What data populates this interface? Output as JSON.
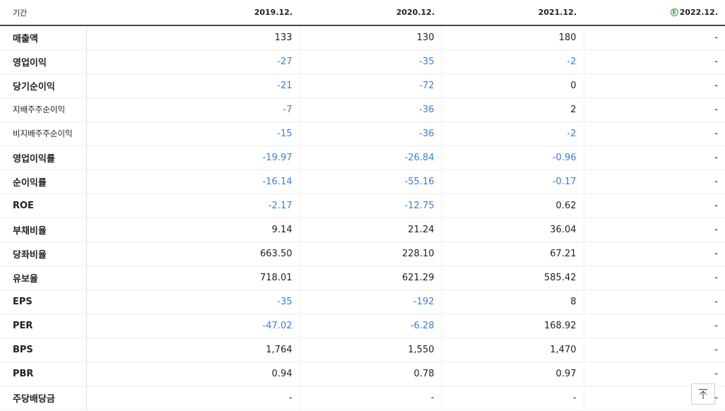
{
  "header": {
    "period_label": "기간",
    "years": [
      "2019.12.",
      "2020.12.",
      "2021.12.",
      "2022.12."
    ],
    "estimate_mark": "E"
  },
  "rows": [
    {
      "label": "매출액",
      "values": [
        "133",
        "130",
        "180",
        "-"
      ]
    },
    {
      "label": "영업이익",
      "values": [
        "-27",
        "-35",
        "-2",
        "-"
      ]
    },
    {
      "label": "당기순이익",
      "values": [
        "-21",
        "-72",
        "0",
        "-"
      ]
    },
    {
      "label": "지배주주순이익",
      "values": [
        "-7",
        "-36",
        "2",
        "-"
      ]
    },
    {
      "label": "비지배주주순이익",
      "values": [
        "-15",
        "-36",
        "-2",
        "-"
      ]
    },
    {
      "label": "영업이익률",
      "values": [
        "-19.97",
        "-26.84",
        "-0.96",
        "-"
      ]
    },
    {
      "label": "순이익률",
      "values": [
        "-16.14",
        "-55.16",
        "-0.17",
        "-"
      ]
    },
    {
      "label": "ROE",
      "values": [
        "-2.17",
        "-12.75",
        "0.62",
        "-"
      ]
    },
    {
      "label": "부채비율",
      "values": [
        "9.14",
        "21.24",
        "36.04",
        "-"
      ]
    },
    {
      "label": "당좌비율",
      "values": [
        "663.50",
        "228.10",
        "67.21",
        "-"
      ]
    },
    {
      "label": "유보율",
      "values": [
        "718.01",
        "621.29",
        "585.42",
        "-"
      ]
    },
    {
      "label": "EPS",
      "values": [
        "-35",
        "-192",
        "8",
        "-"
      ]
    },
    {
      "label": "PER",
      "values": [
        "-47.02",
        "-6.28",
        "168.92",
        "-"
      ]
    },
    {
      "label": "BPS",
      "values": [
        "1,764",
        "1,550",
        "1,470",
        "-"
      ]
    },
    {
      "label": "PBR",
      "values": [
        "0.94",
        "0.78",
        "0.97",
        "-"
      ]
    },
    {
      "label": "주당배당금",
      "values": [
        "-",
        "-",
        "-",
        "-"
      ]
    }
  ],
  "colors": {
    "negative": "#3a80d6",
    "estimate": "#2aa34a"
  },
  "scroll_top_icon": "arrow-up-to-top-icon"
}
